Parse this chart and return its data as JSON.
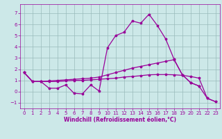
{
  "xlabel": "Windchill (Refroidissement éolien,°C)",
  "bg_color": "#cce8e8",
  "line_color": "#990099",
  "grid_color": "#99bbbb",
  "xlim": [
    -0.5,
    23.5
  ],
  "ylim": [
    -1.5,
    7.8
  ],
  "xticks": [
    0,
    1,
    2,
    3,
    4,
    5,
    6,
    7,
    8,
    9,
    10,
    11,
    12,
    13,
    14,
    15,
    16,
    17,
    18,
    19,
    20,
    21,
    22,
    23
  ],
  "yticks": [
    -1,
    0,
    1,
    2,
    3,
    4,
    5,
    6,
    7
  ],
  "s1_x": [
    0,
    1,
    2,
    3,
    4,
    5,
    6,
    7,
    8,
    9,
    10,
    11,
    12,
    13,
    14,
    15,
    16,
    17,
    18,
    19,
    20,
    21
  ],
  "s1_y": [
    1.7,
    0.9,
    0.9,
    0.3,
    0.3,
    0.6,
    -0.15,
    -0.2,
    0.6,
    0.05,
    3.9,
    5.0,
    5.3,
    6.3,
    6.1,
    6.9,
    5.9,
    4.7,
    2.9,
    1.5,
    0.8,
    0.5
  ],
  "s2_x": [
    0,
    1,
    2,
    3,
    4,
    5,
    6,
    7,
    8,
    9,
    10,
    11,
    12,
    13,
    14,
    15,
    16,
    17,
    18,
    19,
    20,
    21,
    22,
    23
  ],
  "s2_y": [
    1.7,
    0.9,
    0.9,
    0.95,
    1.0,
    1.05,
    1.1,
    1.15,
    1.2,
    1.3,
    1.5,
    1.7,
    1.9,
    2.1,
    2.25,
    2.4,
    2.55,
    2.7,
    2.85,
    1.5,
    0.8,
    0.5,
    -0.6,
    -0.9
  ],
  "s3_x": [
    0,
    1,
    2,
    3,
    4,
    5,
    6,
    7,
    8,
    9,
    10,
    11,
    12,
    13,
    14,
    15,
    16,
    17,
    18,
    19,
    20,
    21,
    22,
    23
  ],
  "s3_y": [
    1.7,
    0.9,
    0.9,
    0.9,
    0.9,
    0.95,
    1.0,
    1.0,
    1.05,
    1.1,
    1.15,
    1.2,
    1.3,
    1.35,
    1.42,
    1.5,
    1.52,
    1.52,
    1.5,
    1.45,
    1.35,
    1.2,
    -0.6,
    -0.9
  ],
  "tick_fontsize": 5,
  "xlabel_fontsize": 5.5
}
